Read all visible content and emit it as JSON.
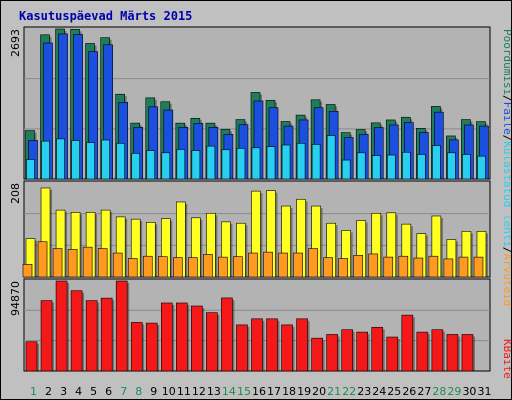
{
  "chart_title": "Kasutuspäevad Märts 2015",
  "legend": {
    "pooradumisi": "Pöördumisi",
    "faile": "Faile",
    "kulastatud_lehti": "Külastatud lehti",
    "arvuteid": "Arvuteid",
    "kbaite": "KBaite",
    "sep": "/"
  },
  "colors": {
    "pooradumisi": "#1E7D5A",
    "faile": "#1A4FE0",
    "kulastatud_lehti": "#27D0F0",
    "arvuteid": "#FFFF20",
    "kbaite": "#FF9A20",
    "kbaite_red": "#F41818",
    "panel_bg": "#B3B3B3",
    "frame_bg": "#C0C0C0",
    "title": "#0000B0",
    "weekend": "#1E8C55"
  },
  "chart_data": {
    "type": "bar",
    "title": "Kasutuspäevad Märts 2015",
    "categories": [
      "1",
      "2",
      "3",
      "4",
      "5",
      "6",
      "7",
      "8",
      "9",
      "10",
      "11",
      "12",
      "13",
      "14",
      "15",
      "16",
      "17",
      "18",
      "19",
      "20",
      "21",
      "22",
      "23",
      "24",
      "25",
      "26",
      "27",
      "28",
      "29",
      "30",
      "31"
    ],
    "weekend_days": [
      "1",
      "7",
      "8",
      "14",
      "15",
      "21",
      "22",
      "28",
      "29"
    ],
    "panels": [
      {
        "name": "hits",
        "ymax_label": "2693",
        "ylim": [
          0,
          2693
        ],
        "series": [
          {
            "name": "Pöördumisi",
            "values": [
              870,
              2589,
              2693,
              2687,
              2433,
              2537,
              1522,
              1003,
              1457,
              1387,
              1003,
              1090,
              1003,
              893,
              1067,
              1554,
              1412,
              1032,
              1147,
              1422,
              1338,
              833,
              888,
              1008,
              1060,
              1109,
              910,
              1304,
              773,
              1067,
              1030
            ]
          },
          {
            "name": "Faile",
            "values": [
              693,
              2442,
              2604,
              2595,
              2286,
              2410,
              1375,
              928,
              1296,
              1238,
              928,
              998,
              928,
              802,
              975,
              1401,
              1280,
              950,
              1060,
              1280,
              1215,
              745,
              800,
              925,
              970,
              1014,
              835,
              1200,
              702,
              970,
              950
            ]
          },
          {
            "name": "Külastatud lehti",
            "values": [
              350,
              680,
              720,
              690,
              655,
              700,
              640,
              460,
              510,
              470,
              530,
              510,
              590,
              525,
              550,
              560,
              580,
              610,
              640,
              620,
              780,
              340,
              470,
              420,
              430,
              480,
              440,
              600,
              470,
              440,
              410
            ]
          }
        ]
      },
      {
        "name": "visits",
        "ymax_label": "208",
        "ylim": [
          0,
          208
        ],
        "series": [
          {
            "name": "Külastatud lehti",
            "values": [
              85,
              197,
              148,
              143,
              143,
              148,
              133,
              128,
              121,
              129,
              166,
              131,
              141,
              122,
              119,
              190,
              191,
              157,
              172,
              157,
              119,
              103,
              125,
              141,
              142,
              117,
              96,
              135,
              83,
              101,
              101
            ]
          },
          {
            "name": "Arvuteid",
            "values": [
              28,
              78,
              63,
              61,
              66,
              63,
              53,
              41,
              46,
              45,
              43,
              43,
              50,
              44,
              45,
              53,
              55,
              53,
              53,
              63,
              43,
              41,
              48,
              51,
              44,
              46,
              42,
              46,
              40,
              44,
              44
            ]
          }
        ]
      },
      {
        "name": "kbytes",
        "ymax_label": "94870",
        "ylim": [
          0,
          94870
        ],
        "series": [
          {
            "name": "KBaite",
            "values": [
              30800,
              74200,
              94870,
              84600,
              74200,
              76800,
              94870,
              51200,
              50500,
              71700,
              71700,
              68500,
              61500,
              77000,
              48600,
              55000,
              55000,
              48600,
              55000,
              34600,
              38500,
              43500,
              41000,
              46100,
              35800,
              58900,
              41000,
              43500,
              38500,
              38500,
              0
            ]
          }
        ]
      }
    ]
  }
}
